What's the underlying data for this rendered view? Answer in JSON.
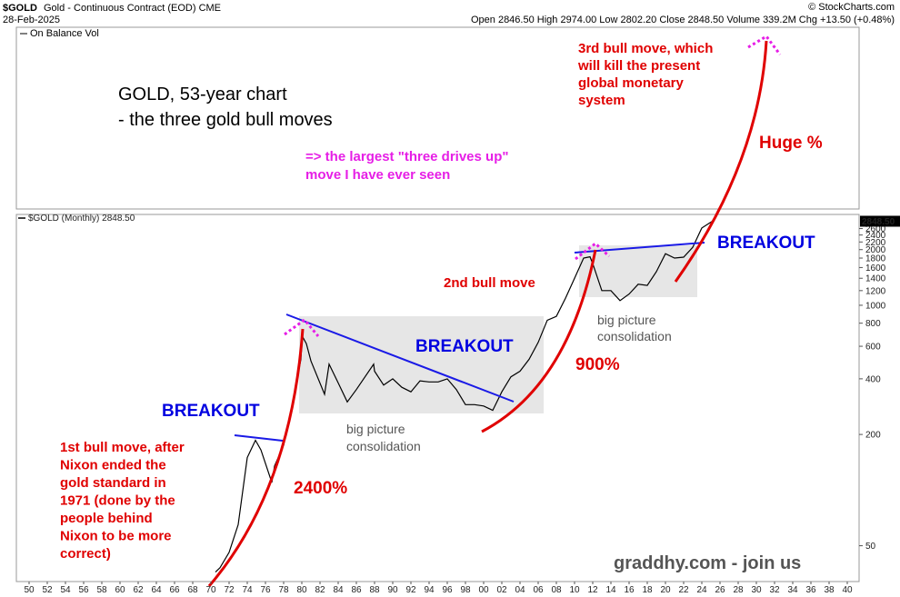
{
  "chart_data": {
    "type": "line",
    "title": "$GOLD",
    "subtitle": "Gold - Continuous Contract (EOD) CME",
    "date": "28-Feb-2025",
    "quote": "Open 2846.50 High 2974.00 Low 2802.20 Close 2848.50 Volume 339.2M Chg +13.50 (+0.48%)",
    "credit": "© StockCharts.com",
    "indicator_label": "On Balance Vol",
    "series": [
      {
        "name": "$GOLD (Monthly) 2848.50",
        "color": "#000000",
        "x": [
          1970.5,
          1971,
          1972,
          1973,
          1974,
          1974.9,
          1975.5,
          1976.7,
          1977,
          1978,
          1979,
          1979.9,
          1980.05,
          1980.5,
          1981,
          1982.5,
          1983,
          1984,
          1985,
          1986,
          1987.9,
          1988,
          1989,
          1990,
          1991,
          1992,
          1993,
          1994,
          1995,
          1996,
          1997,
          1998,
          1999,
          2000,
          2001,
          2002,
          2003,
          2004,
          2005,
          2006,
          2007,
          2008,
          2009,
          2010,
          2011,
          2011.7,
          2012,
          2013,
          2014,
          2015,
          2016,
          2017,
          2018,
          2019,
          2020,
          2021,
          2022,
          2023,
          2024,
          2025.15
        ],
        "values": [
          36,
          38,
          46,
          65,
          150,
          186,
          165,
          110,
          135,
          175,
          300,
          510,
          680,
          620,
          500,
          330,
          480,
          380,
          300,
          350,
          480,
          440,
          370,
          400,
          360,
          340,
          390,
          385,
          385,
          400,
          350,
          290,
          290,
          285,
          270,
          340,
          410,
          440,
          510,
          630,
          830,
          870,
          1090,
          1400,
          1800,
          1830,
          1680,
          1200,
          1200,
          1060,
          1150,
          1300,
          1280,
          1520,
          1900,
          1800,
          1820,
          2060,
          2620,
          2848.5
        ]
      }
    ],
    "last_value": {
      "value": 2848.5,
      "label": "2848.50"
    },
    "log_scale": true,
    "xlim": [
      1948.6,
      2041.3
    ],
    "ylim": [
      32,
      3100
    ],
    "xticks": [
      {
        "value": 1950,
        "label": "50"
      },
      {
        "value": 1952,
        "label": "52"
      },
      {
        "value": 1954,
        "label": "54"
      },
      {
        "value": 1956,
        "label": "56"
      },
      {
        "value": 1958,
        "label": "58"
      },
      {
        "value": 1960,
        "label": "60"
      },
      {
        "value": 1962,
        "label": "62"
      },
      {
        "value": 1964,
        "label": "64"
      },
      {
        "value": 1966,
        "label": "66"
      },
      {
        "value": 1968,
        "label": "68"
      },
      {
        "value": 1970,
        "label": "70"
      },
      {
        "value": 1972,
        "label": "72"
      },
      {
        "value": 1974,
        "label": "74"
      },
      {
        "value": 1976,
        "label": "76"
      },
      {
        "value": 1978,
        "label": "78"
      },
      {
        "value": 1980,
        "label": "80"
      },
      {
        "value": 1982,
        "label": "82"
      },
      {
        "value": 1984,
        "label": "84"
      },
      {
        "value": 1986,
        "label": "86"
      },
      {
        "value": 1988,
        "label": "88"
      },
      {
        "value": 1990,
        "label": "90"
      },
      {
        "value": 1992,
        "label": "92"
      },
      {
        "value": 1994,
        "label": "94"
      },
      {
        "value": 1996,
        "label": "96"
      },
      {
        "value": 1998,
        "label": "98"
      },
      {
        "value": 2000,
        "label": "00"
      },
      {
        "value": 2002,
        "label": "02"
      },
      {
        "value": 2004,
        "label": "04"
      },
      {
        "value": 2006,
        "label": "06"
      },
      {
        "value": 2008,
        "label": "08"
      },
      {
        "value": 2010,
        "label": "10"
      },
      {
        "value": 2012,
        "label": "12"
      },
      {
        "value": 2014,
        "label": "14"
      },
      {
        "value": 2016,
        "label": "16"
      },
      {
        "value": 2018,
        "label": "18"
      },
      {
        "value": 2020,
        "label": "20"
      },
      {
        "value": 2022,
        "label": "22"
      },
      {
        "value": 2024,
        "label": "24"
      },
      {
        "value": 2026,
        "label": "26"
      },
      {
        "value": 2028,
        "label": "28"
      },
      {
        "value": 2030,
        "label": "30"
      },
      {
        "value": 2032,
        "label": "32"
      },
      {
        "value": 2034,
        "label": "34"
      },
      {
        "value": 2036,
        "label": "36"
      },
      {
        "value": 2038,
        "label": "38"
      },
      {
        "value": 2040,
        "label": "40"
      }
    ],
    "yticks": [
      50,
      200,
      400,
      600,
      800,
      1000,
      1200,
      1400,
      1600,
      1800,
      2000,
      2200,
      2400,
      2600
    ],
    "grid": false,
    "annotations": {
      "heading": [
        "GOLD, 53-year chart",
        "- the three gold bull moves"
      ],
      "three_drives": [
        "=> the largest \"three drives up\"",
        "move I have ever seen"
      ],
      "third_move": [
        "3rd bull move, which",
        "will kill the present",
        "global monetary",
        "system"
      ],
      "huge": "Huge %",
      "breakouts": [
        "BREAKOUT",
        "BREAKOUT",
        "BREAKOUT"
      ],
      "second_move": "2nd bull move",
      "pct_900": "900%",
      "pct_2400": "2400%",
      "consolidation_1": [
        "big picture",
        "consolidation"
      ],
      "consolidation_2": [
        "big picture",
        "consolidation"
      ],
      "first_move": [
        "1st bull move, after",
        "Nixon ended the",
        "gold standard in",
        "1971 (done by the",
        "people behind",
        "Nixon to be more",
        "correct)"
      ],
      "site": "graddhy.com - join us"
    }
  }
}
